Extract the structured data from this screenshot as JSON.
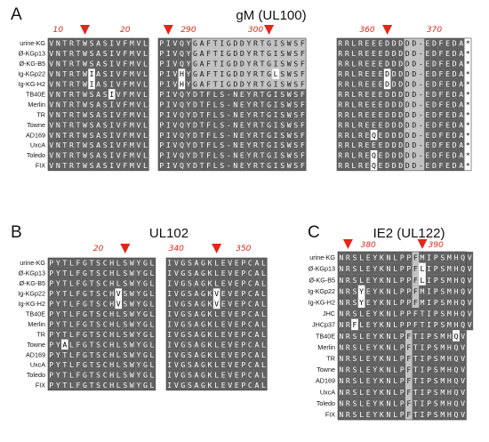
{
  "colors": {
    "identical_bg": "#616161",
    "identical_fg": "#ffffff",
    "similar_bg": "#c2c2c2",
    "similar_fg": "#1a1a1a",
    "variant_bg": "#ffffff",
    "variant_fg": "#000000",
    "marker": "#e3261a",
    "tick_label": "#e3261a"
  },
  "panels": [
    {
      "id": "A",
      "letter": "A",
      "title": "gM (UL100)",
      "strains": [
        "urine-KG",
        "Ø-KGp13",
        "Ø-KG-B5",
        "Ig-KGp22",
        "Ig-KG-H2",
        "TB40E",
        "Merlin",
        "TR",
        "Towne",
        "AD169",
        "UxcA",
        "Toledo",
        "FIX"
      ],
      "blocks": [
        {
          "tick_labels": [
            {
              "text": "10",
              "col": 1
            },
            {
              "text": "20",
              "col": 11
            }
          ],
          "marker_cols": [
            5
          ],
          "consensus": "VNTRTWSASIVFMVL",
          "similar_cols": [],
          "variants": [
            {
              "row": 3,
              "col": 6,
              "aa": "I"
            },
            {
              "row": 4,
              "col": 6,
              "aa": "I"
            },
            {
              "row": 5,
              "col": 9,
              "aa": "I"
            }
          ]
        },
        {
          "tick_labels": [
            {
              "text": "290",
              "col": 4
            },
            {
              "text": "300",
              "col": 14
            }
          ],
          "marker_cols": [
            1,
            16
          ],
          "consensus": "PIVQYDTFLS-NEYRTGISWSF",
          "similar_cols": [],
          "segment_overrides": [
            {
              "rows": [
                0,
                1,
                2,
                3,
                4
              ],
              "start": 5,
              "text": "GAFTIGDDYRTGISWSF",
              "similar_cols": [
                5,
                6,
                7,
                8,
                9,
                10,
                11,
                12,
                13,
                14,
                15,
                16,
                17,
                18,
                19,
                20,
                21
              ]
            }
          ],
          "variants": [
            {
              "row": 3,
              "col": 3,
              "aa": "H"
            },
            {
              "row": 4,
              "col": 3,
              "aa": "H"
            },
            {
              "row": 3,
              "col": 17,
              "aa": "L"
            }
          ]
        },
        {
          "tick_labels": [
            {
              "text": "360",
              "col": 4
            },
            {
              "text": "370",
              "col": 14
            }
          ],
          "marker_cols": [
            7
          ],
          "consensus": "RRLREEEDDDDD-EDFEDA*",
          "similar_cols": [
            10,
            11,
            12,
            19
          ],
          "variants": [
            {
              "row": 3,
              "col": 7,
              "aa": "D"
            },
            {
              "row": 4,
              "col": 7,
              "aa": "D"
            },
            {
              "row": 9,
              "col": 5,
              "aa": "Q"
            },
            {
              "row": 11,
              "col": 5,
              "aa": "Q"
            },
            {
              "row": 12,
              "col": 5,
              "aa": "Q"
            }
          ]
        }
      ]
    },
    {
      "id": "B",
      "letter": "B",
      "title": "UL102",
      "strains": [
        "urine-KG",
        "Ø-KGp13",
        "Ø-KG-B5",
        "Ig-KGp22",
        "Ig-KG-H2",
        "TB40E",
        "Merlin",
        "TR",
        "Towne",
        "AD169",
        "UxcA",
        "Toledo",
        "FIX"
      ],
      "blocks": [
        {
          "tick_labels": [
            {
              "text": "20",
              "col": 7
            }
          ],
          "marker_cols": [
            11
          ],
          "consensus": "PYTLFGTSCHLSWYGL",
          "similar_cols": [],
          "variants": [
            {
              "row": 3,
              "col": 10,
              "aa": "V"
            },
            {
              "row": 4,
              "col": 10,
              "aa": "V"
            },
            {
              "row": 8,
              "col": 2,
              "aa": "A"
            }
          ]
        },
        {
          "tick_labels": [
            {
              "text": "340",
              "col": 1
            },
            {
              "text": "350",
              "col": 11
            }
          ],
          "marker_cols": [
            7
          ],
          "consensus": "IVGSAGKLEVEPCAL",
          "similar_cols": [],
          "variants": [
            {
              "row": 3,
              "col": 7,
              "aa": "V"
            },
            {
              "row": 4,
              "col": 7,
              "aa": "V"
            }
          ]
        }
      ]
    },
    {
      "id": "C",
      "letter": "C",
      "title": "IE2 (UL122)",
      "strains": [
        "urine-KG",
        "Ø-KGp13",
        "Ø-KG-B5",
        "Ig-KGp22",
        "Ig-KG-H2",
        "JHC",
        "JHCp37",
        "TB40E",
        "Merlin",
        "TR",
        "Towne",
        "AD169",
        "UxcA",
        "Toledo",
        "FIX"
      ],
      "blocks": [
        {
          "tick_labels": [
            {
              "text": "380",
              "col": 4
            },
            {
              "text": "390",
              "col": 14
            }
          ],
          "marker_cols": [
            1,
            12
          ],
          "consensus": "NRSLEYKNLPFTIPSMHQV",
          "similar_cols": [
            10
          ],
          "segment_overrides": [
            {
              "rows": [
                0,
                1,
                2,
                3,
                4
              ],
              "start": 10,
              "text": "PFMIPSMHQV",
              "similar_cols": [
                11
              ]
            },
            {
              "rows": [
                5,
                6
              ],
              "start": 10,
              "text": "PFTIPSMHQV",
              "similar_cols": []
            }
          ],
          "variants": [
            {
              "row": 1,
              "col": 12,
              "aa": "L"
            },
            {
              "row": 2,
              "col": 12,
              "aa": "L"
            },
            {
              "row": 3,
              "col": 3,
              "aa": "Y"
            },
            {
              "row": 4,
              "col": 3,
              "aa": "Y"
            },
            {
              "row": 6,
              "col": 2,
              "aa": "F"
            },
            {
              "row": 7,
              "col": 17,
              "aa": "Q"
            }
          ]
        }
      ]
    }
  ]
}
